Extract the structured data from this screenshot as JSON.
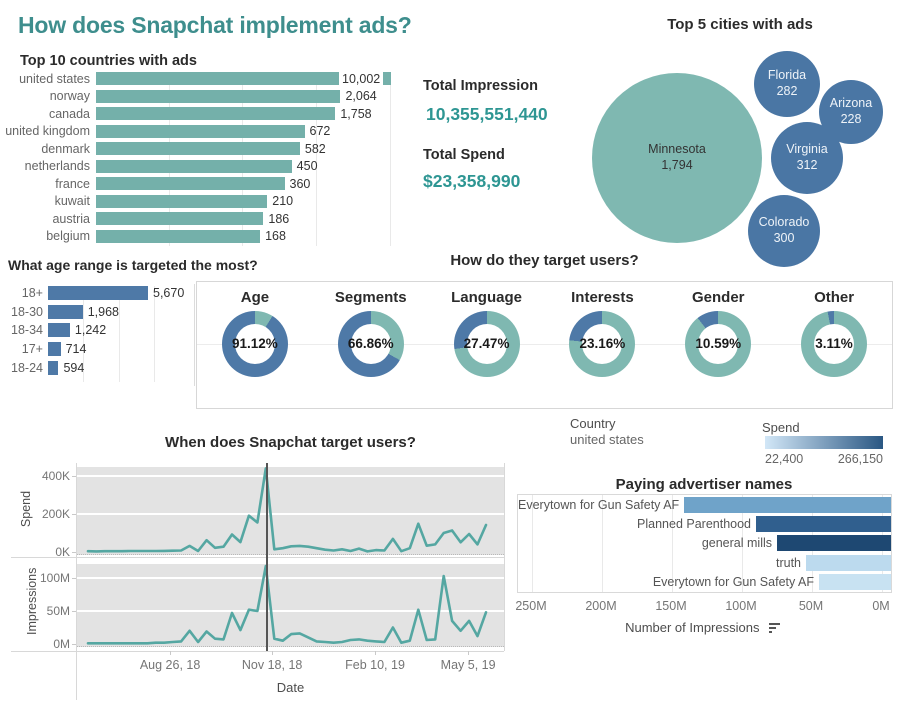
{
  "page_title": "How does Snapchat implement ads?",
  "colors": {
    "title_teal": "#3E8E8D",
    "number_teal": "#2E9693",
    "teal_bar": "#74B0AA",
    "donut_teal": "#7FB8B1",
    "line_teal": "#55A7A2",
    "blue": "#4E79A7",
    "bubble_blue": "#4A76A4",
    "pane_gray": "#E3E3E3",
    "ref_line": "#555555",
    "grad_min_color": "#D2E7F7",
    "grad_max_color": "#2A5783"
  },
  "totals": {
    "impression_label": "Total Impression",
    "impression_value": "10,355,551,440",
    "spend_label": "Total Spend",
    "spend_value": "$23,358,990"
  },
  "legends": {
    "country_label": "Country",
    "country_value": "united states",
    "spend_label": "Spend",
    "spend_min": "22,400",
    "spend_max": "266,150"
  },
  "chart_data": [
    {
      "id": "countries",
      "type": "bar",
      "orientation": "horizontal",
      "scale": "log",
      "title": "Top 10 countries with ads",
      "categories": [
        "united states",
        "norway",
        "canada",
        "united kingdom",
        "denmark",
        "netherlands",
        "france",
        "kuwait",
        "austria",
        "belgium"
      ],
      "values": [
        10002,
        2064,
        1758,
        672,
        582,
        450,
        360,
        210,
        186,
        168
      ],
      "value_labels": [
        "10,002",
        "2,064",
        "1,758",
        "672",
        "582",
        "450",
        "360",
        "210",
        "186",
        "168"
      ],
      "grid": true
    },
    {
      "id": "cities",
      "type": "bubble",
      "title": "Top 5 cities with ads",
      "points": [
        {
          "name": "Minnesota",
          "value": 1794,
          "label": "1,794",
          "color": "#7FB8B1",
          "text_color": "#333333",
          "cx": 677,
          "cy": 158,
          "r": 85
        },
        {
          "name": "Florida",
          "value": 282,
          "label": "282",
          "color": "#4A76A4",
          "text_color": "#eef3f8",
          "cx": 787,
          "cy": 84,
          "r": 33
        },
        {
          "name": "Arizona",
          "value": 228,
          "label": "228",
          "color": "#4A76A4",
          "text_color": "#eef3f8",
          "cx": 851,
          "cy": 112,
          "r": 32
        },
        {
          "name": "Virginia",
          "value": 312,
          "label": "312",
          "color": "#4A76A4",
          "text_color": "#eef3f8",
          "cx": 807,
          "cy": 158,
          "r": 36
        },
        {
          "name": "Colorado",
          "value": 300,
          "label": "300",
          "color": "#4A76A4",
          "text_color": "#eef3f8",
          "cx": 784,
          "cy": 231,
          "r": 36
        }
      ]
    },
    {
      "id": "age",
      "type": "bar",
      "orientation": "horizontal",
      "scale": "linear",
      "title": "What age range is targeted the most?",
      "categories": [
        "18+",
        "18-30",
        "18-34",
        "17+",
        "18-24"
      ],
      "values": [
        5670,
        1968,
        1242,
        714,
        594
      ],
      "value_labels": [
        "5,670",
        "1,968",
        "1,242",
        "714",
        "594"
      ],
      "grid": true
    },
    {
      "id": "targeting",
      "type": "donut-grid",
      "title": "How do they target users?",
      "donuts": [
        {
          "label": "Age",
          "pct": 91.12,
          "pct_label": "91.12%"
        },
        {
          "label": "Segments",
          "pct": 66.86,
          "pct_label": "66.86%"
        },
        {
          "label": "Language",
          "pct": 27.47,
          "pct_label": "27.47%"
        },
        {
          "label": "Interests",
          "pct": 23.16,
          "pct_label": "23.16%"
        },
        {
          "label": "Gender",
          "pct": 10.59,
          "pct_label": "10.59%"
        },
        {
          "label": "Other",
          "pct": 3.11,
          "pct_label": "3.11%"
        }
      ]
    },
    {
      "id": "timeline",
      "type": "line",
      "title": "When does Snapchat target users?",
      "xlabel": "Date",
      "x_ticks": [
        {
          "label": "Aug 26, 18",
          "f": 0.218
        },
        {
          "label": "Nov 18, 18",
          "f": 0.457
        },
        {
          "label": "Feb 10, 19",
          "f": 0.698
        },
        {
          "label": "May 5, 19",
          "f": 0.916
        }
      ],
      "ref_line_f": 0.443,
      "panels": [
        {
          "name": "Spend",
          "y_ticks": [
            {
              "label": "0K",
              "v": 0
            },
            {
              "label": "200K",
              "v": 200
            },
            {
              "label": "400K",
              "v": 400
            }
          ],
          "ymax": 468,
          "values": [
            4,
            3,
            4,
            4,
            4,
            5,
            5,
            5,
            5,
            6,
            7,
            8,
            32,
            5,
            62,
            22,
            28,
            92,
            52,
            191,
            155,
            440,
            14,
            20,
            30,
            32,
            28,
            20,
            12,
            8,
            14,
            5,
            18,
            3,
            10,
            8,
            69,
            4,
            20,
            149,
            33,
            40,
            100,
            113,
            51,
            95,
            40,
            142
          ]
        },
        {
          "name": "Impressions",
          "y_ticks": [
            {
              "label": "0M",
              "v": 0
            },
            {
              "label": "50M",
              "v": 50
            },
            {
              "label": "100M",
              "v": 100
            }
          ],
          "ymax": 127,
          "values": [
            1,
            1,
            1,
            1,
            1,
            1,
            1,
            1,
            2,
            2,
            3,
            4,
            20,
            3,
            19,
            8,
            7,
            47,
            21,
            52,
            50,
            118,
            8,
            5,
            15,
            16,
            10,
            4,
            3,
            2,
            3,
            6,
            7,
            5,
            4,
            3,
            25,
            2,
            5,
            52,
            6,
            7,
            103,
            35,
            20,
            35,
            12,
            48
          ]
        }
      ]
    },
    {
      "id": "advertisers",
      "type": "bar",
      "orientation": "horizontal",
      "reversed_axis": true,
      "title": "Paying advertiser names",
      "xlabel": "Number of Impressions",
      "categories": [
        "Everytown for Gun Safety AF",
        "Planned Parenthood",
        "general mills",
        "truth",
        "Everytown for Gun Safety AF"
      ],
      "values_m": [
        143,
        90,
        75,
        54,
        45
      ],
      "bar_colors": [
        "#6FA3C9",
        "#305F8E",
        "#1E4872",
        "#BCDAEE",
        "#C8E2F2"
      ],
      "x_ticks": [
        "250M",
        "200M",
        "150M",
        "100M",
        "50M",
        "0M"
      ]
    }
  ]
}
